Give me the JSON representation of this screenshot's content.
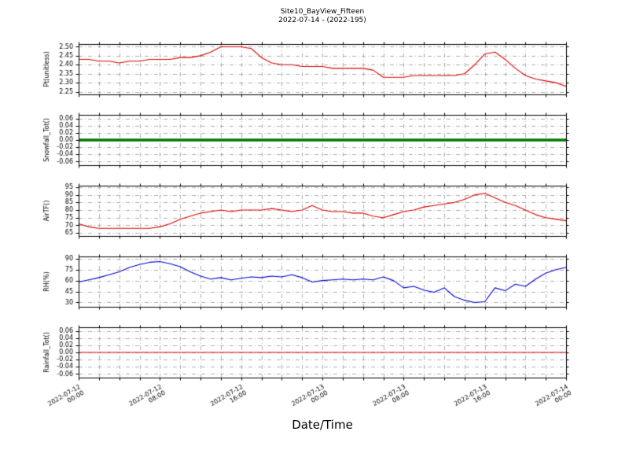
{
  "window": {
    "background": "#ffffff"
  },
  "chart_data": {
    "type": "line",
    "title": "Site10_BayView_Fifteen",
    "subtitle": "2022-07-14 - (2022-195)",
    "xlabel": "Date/Time",
    "grid": true,
    "grid_step_hours": 2,
    "grid_color": "#9a9a9a",
    "x_range_hours": [
      0,
      48
    ],
    "x_ticks": [
      {
        "hour": 0,
        "date": "2022-07-12",
        "time": "00:00"
      },
      {
        "hour": 8,
        "date": "2022-07-12",
        "time": "08:00"
      },
      {
        "hour": 16,
        "date": "2022-07-12",
        "time": "16:00"
      },
      {
        "hour": 24,
        "date": "2022-07-13",
        "time": "00:00"
      },
      {
        "hour": 32,
        "date": "2022-07-13",
        "time": "08:00"
      },
      {
        "hour": 40,
        "date": "2022-07-13",
        "time": "16:00"
      },
      {
        "hour": 48,
        "date": "2022-07-14",
        "time": "00:00"
      }
    ],
    "panels": [
      {
        "ylabel": "Pt(unitless)",
        "color": "#dd0000",
        "linewidth": 1.1,
        "ylim": [
          2.235,
          2.515
        ],
        "yticks": [
          2.25,
          2.3,
          2.35,
          2.4,
          2.45,
          2.5
        ],
        "ytick_labels": [
          "2.25",
          "2.30",
          "2.35",
          "2.40",
          "2.45",
          "2.50"
        ],
        "x_step_hours": 1,
        "values": [
          2.43,
          2.43,
          2.42,
          2.42,
          2.41,
          2.42,
          2.42,
          2.43,
          2.43,
          2.43,
          2.44,
          2.44,
          2.45,
          2.47,
          2.5,
          2.5,
          2.5,
          2.49,
          2.44,
          2.41,
          2.4,
          2.4,
          2.39,
          2.39,
          2.39,
          2.38,
          2.38,
          2.38,
          2.38,
          2.37,
          2.33,
          2.33,
          2.33,
          2.34,
          2.34,
          2.34,
          2.34,
          2.34,
          2.35,
          2.4,
          2.46,
          2.47,
          2.43,
          2.38,
          2.34,
          2.32,
          2.31,
          2.3,
          2.28
        ]
      },
      {
        "ylabel": "Snowfall_Tot()",
        "color": "#007700",
        "linewidth": 3.5,
        "ylim": [
          -0.07,
          0.07
        ],
        "yticks": [
          -0.06,
          -0.04,
          -0.02,
          0.0,
          0.02,
          0.04,
          0.06
        ],
        "ytick_labels": [
          "-0.06",
          "-0.04",
          "-0.02",
          "0.00",
          "0.02",
          "0.04",
          "0.06"
        ],
        "x_step_hours": 1,
        "values": [
          0,
          0,
          0,
          0,
          0,
          0,
          0,
          0,
          0,
          0,
          0,
          0,
          0,
          0,
          0,
          0,
          0,
          0,
          0,
          0,
          0,
          0,
          0,
          0,
          0,
          0,
          0,
          0,
          0,
          0,
          0,
          0,
          0,
          0,
          0,
          0,
          0,
          0,
          0,
          0,
          0,
          0,
          0,
          0,
          0,
          0,
          0,
          0,
          0
        ]
      },
      {
        "ylabel": "AirTF()",
        "color": "#dd0000",
        "linewidth": 1.1,
        "ylim": [
          63,
          96
        ],
        "yticks": [
          65,
          70,
          75,
          80,
          85,
          90,
          95
        ],
        "ytick_labels": [
          "65",
          "70",
          "75",
          "80",
          "85",
          "90",
          "95"
        ],
        "x_step_hours": 1,
        "values": [
          71,
          69,
          68,
          68,
          68,
          68,
          68,
          68,
          69,
          71,
          74,
          76,
          78,
          79,
          80,
          79,
          80,
          80,
          80,
          81,
          80,
          79,
          80,
          83,
          80,
          79,
          79,
          78,
          78,
          76,
          75,
          77,
          79,
          80,
          82,
          83,
          84,
          85,
          87,
          90,
          91,
          88,
          85,
          83,
          80,
          77,
          75,
          74,
          73
        ]
      },
      {
        "ylabel": "RH(%)",
        "color": "#0000cc",
        "linewidth": 1.1,
        "ylim": [
          24,
          93
        ],
        "yticks": [
          30,
          45,
          60,
          75,
          90
        ],
        "ytick_labels": [
          "30",
          "45",
          "60",
          "75",
          "90"
        ],
        "x_step_hours": 1,
        "values": [
          58,
          61,
          64,
          68,
          72,
          78,
          82,
          85,
          86,
          83,
          79,
          72,
          66,
          62,
          64,
          61,
          63,
          65,
          64,
          66,
          65,
          68,
          64,
          58,
          60,
          61,
          62,
          61,
          62,
          61,
          65,
          60,
          50,
          52,
          47,
          44,
          50,
          38,
          33,
          30,
          31,
          50,
          46,
          55,
          52,
          62,
          70,
          75,
          78
        ]
      },
      {
        "ylabel": "Rainfall_Tot()",
        "color": "#dd0000",
        "linewidth": 1.1,
        "ylim": [
          -0.07,
          0.07
        ],
        "yticks": [
          -0.06,
          -0.04,
          -0.02,
          0.0,
          0.02,
          0.04,
          0.06
        ],
        "ytick_labels": [
          "-0.06",
          "-0.04",
          "-0.02",
          "0.00",
          "0.02",
          "0.04",
          "0.06"
        ],
        "x_step_hours": 1,
        "values": [
          0,
          0,
          0,
          0,
          0,
          0,
          0,
          0,
          0,
          0,
          0,
          0,
          0,
          0,
          0,
          0,
          0,
          0,
          0,
          0,
          0,
          0,
          0,
          0,
          0,
          0,
          0,
          0,
          0,
          0,
          0,
          0,
          0,
          0,
          0,
          0,
          0,
          0,
          0,
          0,
          0,
          0,
          0,
          0,
          0,
          0,
          0,
          0,
          0
        ]
      }
    ]
  }
}
